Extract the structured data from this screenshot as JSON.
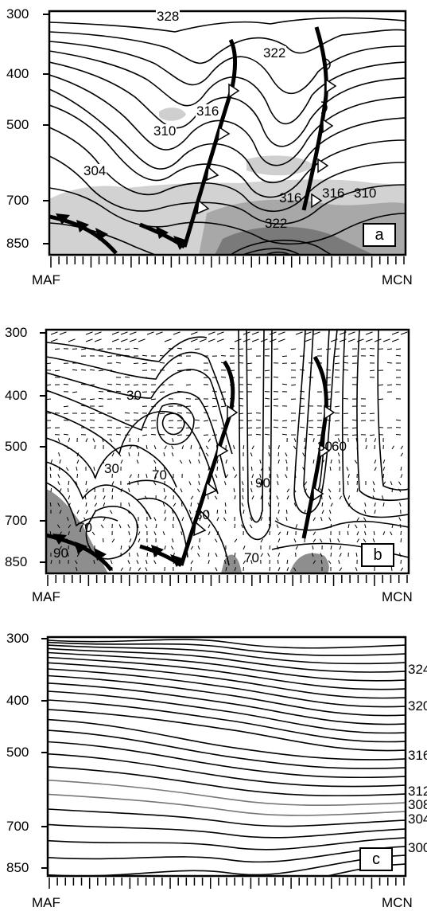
{
  "panels": [
    {
      "id": "a",
      "letter": "a",
      "y_ticks": [
        "300",
        "400",
        "500",
        "700",
        "850"
      ],
      "x_start": "MAF",
      "x_end": "MCN",
      "contour_labels": [
        "328",
        "322",
        "316",
        "310",
        "304",
        "316",
        "322",
        "316",
        "310"
      ]
    },
    {
      "id": "b",
      "letter": "b",
      "y_ticks": [
        "300",
        "400",
        "500",
        "700",
        "850"
      ],
      "x_start": "MAF",
      "x_end": "MCN",
      "contour_labels": [
        "30",
        "30",
        "70",
        "70",
        "90",
        "30",
        "90",
        "70",
        "30",
        "60"
      ]
    },
    {
      "id": "c",
      "letter": "c",
      "y_ticks": [
        "300",
        "400",
        "500",
        "700",
        "850"
      ],
      "x_start": "MAF",
      "x_end": "MCN",
      "contour_labels": [
        "324",
        "320",
        "316",
        "312",
        "308",
        "304",
        "300"
      ]
    }
  ]
}
